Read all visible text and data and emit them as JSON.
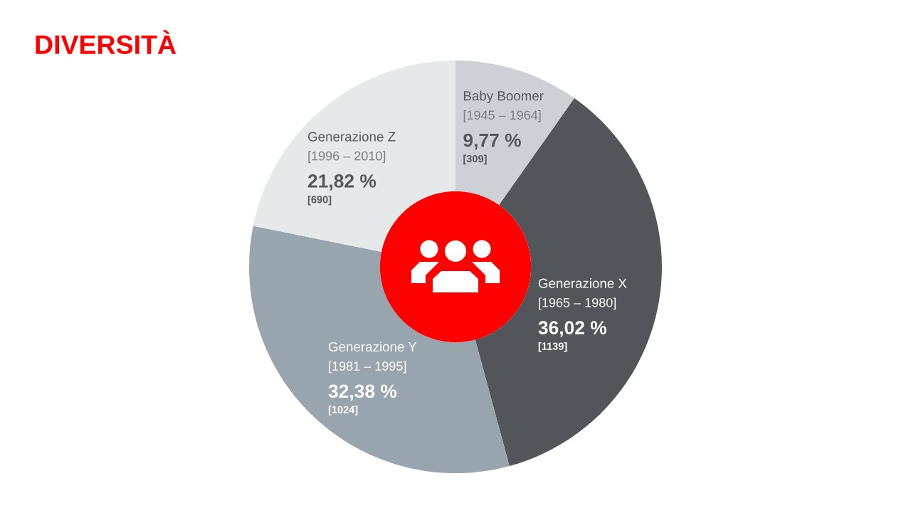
{
  "chart_data": {
    "type": "donut",
    "title": "DIVERSITÀ",
    "categories": [
      "Baby Boomer",
      "Generazione X",
      "Generazione Y",
      "Generazione Z"
    ],
    "values": [
      9.77,
      36.02,
      32.38,
      21.82
    ],
    "colors": [
      "#cdd1d6",
      "#52565a",
      "#98a5af",
      "#e5e9e9"
    ],
    "value_labels": [
      "9,77 %",
      "36,02 %",
      "32,38 %",
      "21,82 %"
    ],
    "annotations": [
      {
        "text": "[1945 – 1964]",
        "x": "Baby Boomer"
      },
      {
        "text": "[309]",
        "x": "Baby Boomer"
      },
      {
        "text": "[1965 – 1980]",
        "x": "Generazione X"
      },
      {
        "text": "[1139]",
        "x": "Generazione X"
      },
      {
        "text": "[1981 – 1995]",
        "x": "Generazione Y"
      },
      {
        "text": "[1024]",
        "x": "Generazione Y"
      },
      {
        "text": "[1996 – 2010]",
        "x": "Generazione Z"
      },
      {
        "text": "[690]",
        "x": "Generazione Z"
      }
    ]
  }
}
